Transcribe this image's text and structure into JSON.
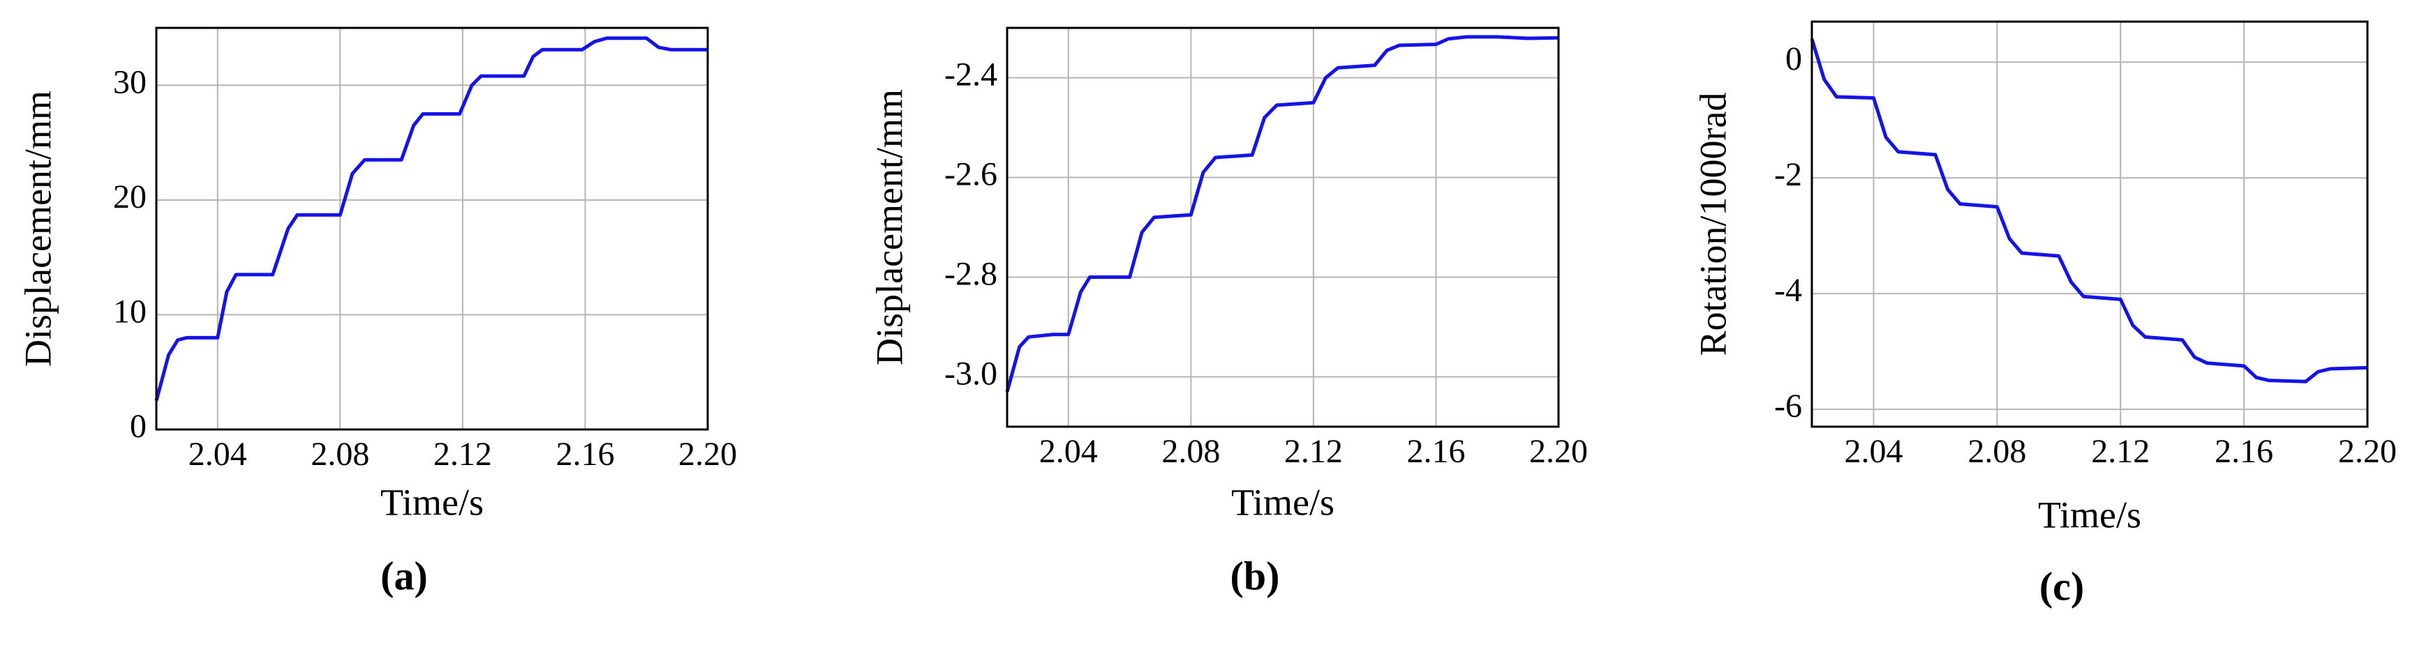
{
  "chart_data": [
    {
      "type": "line",
      "ylabel": "Displacement/mm",
      "xlabel": "Time/s",
      "caption": "(a)",
      "xlim": [
        2.02,
        2.2
      ],
      "xticks": [
        2.04,
        2.08,
        2.12,
        2.16,
        {
          "value": 2.2,
          "label": "2.20"
        }
      ],
      "ylim": [
        0,
        35
      ],
      "yticks": [
        0,
        10,
        20,
        30
      ],
      "grid": true,
      "x": [
        2.02,
        2.024,
        2.027,
        2.03,
        2.04,
        2.043,
        2.046,
        2.058,
        2.063,
        2.066,
        2.08,
        2.084,
        2.088,
        2.1,
        2.104,
        2.107,
        2.119,
        2.123,
        2.126,
        2.14,
        2.143,
        2.146,
        2.159,
        2.163,
        2.167,
        2.18,
        2.184,
        2.188,
        2.2
      ],
      "series": [
        {
          "color": "#1414e6",
          "values": [
            2.5,
            6.5,
            7.8,
            8,
            8,
            12,
            13.5,
            13.5,
            17.5,
            18.7,
            18.7,
            22.3,
            23.5,
            23.5,
            26.5,
            27.5,
            27.5,
            30,
            30.8,
            30.8,
            32.5,
            33.1,
            33.1,
            33.8,
            34.1,
            34.1,
            33.3,
            33.1,
            33.1
          ]
        }
      ]
    },
    {
      "type": "line",
      "ylabel": "Displacement/mm",
      "xlabel": "Time/s",
      "caption": "(b)",
      "xlim": [
        2.02,
        2.2
      ],
      "xticks": [
        2.04,
        2.08,
        2.12,
        2.16,
        {
          "value": 2.2,
          "label": "2.20"
        }
      ],
      "ylim": [
        -3.1,
        -2.3
      ],
      "yticks": [
        {
          "value": -3,
          "label": "-3.0"
        },
        -2.8,
        -2.6,
        -2.4
      ],
      "grid": true,
      "x": [
        2.02,
        2.024,
        2.027,
        2.035,
        2.04,
        2.044,
        2.047,
        2.06,
        2.064,
        2.068,
        2.08,
        2.084,
        2.088,
        2.1,
        2.104,
        2.108,
        2.12,
        2.124,
        2.128,
        2.14,
        2.144,
        2.148,
        2.16,
        2.164,
        2.17,
        2.18,
        2.19,
        2.2
      ],
      "series": [
        {
          "color": "#1414e6",
          "values": [
            -3.03,
            -2.94,
            -2.92,
            -2.915,
            -2.915,
            -2.83,
            -2.8,
            -2.8,
            -2.71,
            -2.68,
            -2.675,
            -2.59,
            -2.56,
            -2.555,
            -2.48,
            -2.455,
            -2.45,
            -2.4,
            -2.38,
            -2.375,
            -2.345,
            -2.335,
            -2.333,
            -2.322,
            -2.318,
            -2.318,
            -2.321,
            -2.32
          ]
        }
      ]
    },
    {
      "type": "line",
      "ylabel": "Rotation/1000rad",
      "xlabel": "Time/s",
      "caption": "(c)",
      "xlim": [
        2.02,
        2.2
      ],
      "xticks": [
        2.04,
        2.08,
        2.12,
        2.16,
        {
          "value": 2.2,
          "label": "2.20"
        }
      ],
      "ylim": [
        -6.3,
        0.7
      ],
      "yticks": [
        -6,
        -4,
        -2,
        0
      ],
      "grid": true,
      "x": [
        2.02,
        2.024,
        2.028,
        2.04,
        2.044,
        2.048,
        2.06,
        2.064,
        2.068,
        2.08,
        2.084,
        2.088,
        2.1,
        2.104,
        2.108,
        2.12,
        2.124,
        2.128,
        2.14,
        2.144,
        2.148,
        2.16,
        2.164,
        2.168,
        2.18,
        2.184,
        2.188,
        2.2
      ],
      "series": [
        {
          "color": "#1414e6",
          "values": [
            0.4,
            -0.3,
            -0.6,
            -0.62,
            -1.3,
            -1.55,
            -1.6,
            -2.2,
            -2.45,
            -2.5,
            -3.05,
            -3.3,
            -3.35,
            -3.8,
            -4.05,
            -4.1,
            -4.55,
            -4.75,
            -4.8,
            -5.1,
            -5.2,
            -5.25,
            -5.45,
            -5.5,
            -5.52,
            -5.35,
            -5.3,
            -5.28
          ]
        }
      ]
    }
  ]
}
